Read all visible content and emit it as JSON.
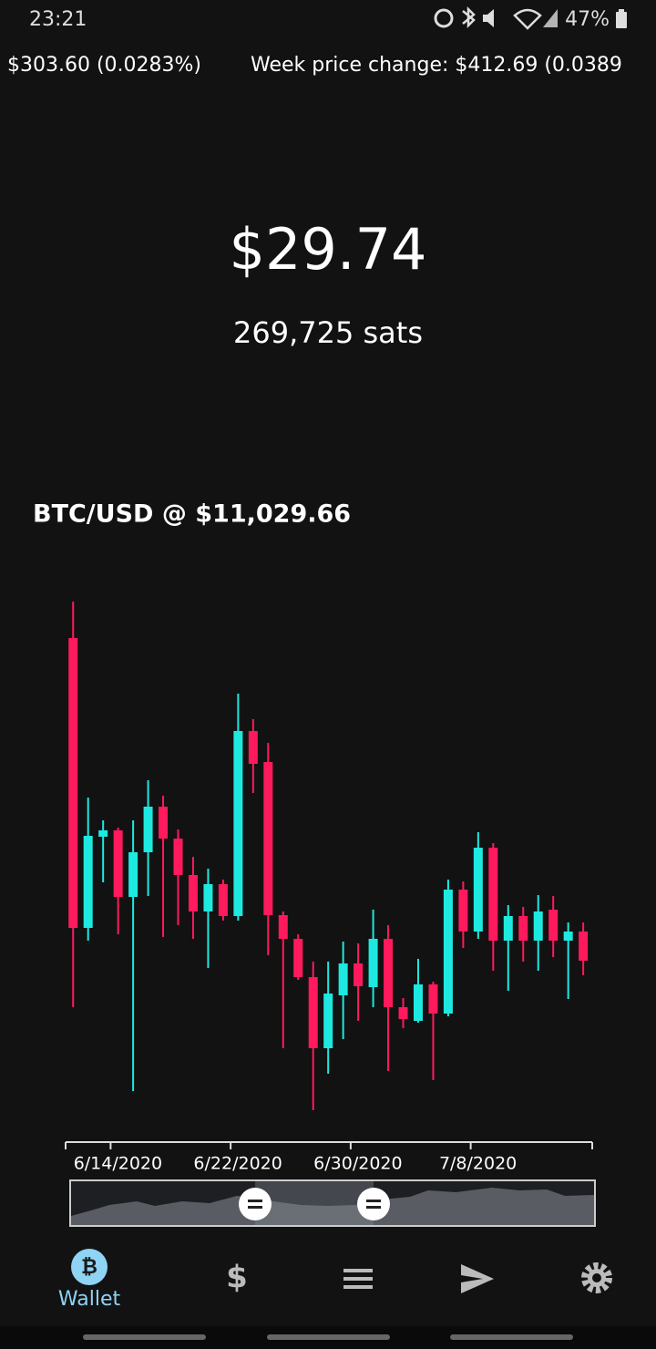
{
  "status_bar": {
    "time": "23:21",
    "battery": "47%"
  },
  "ticker": [
    "$303.60 (0.0283%)",
    "Week price change: $412.69 (0.0389"
  ],
  "balance": {
    "fiat": "$29.74",
    "sats": "269,725 sats"
  },
  "chart_data": {
    "type": "candlestick",
    "title": "BTC/USD @ $11,029.66",
    "up_color": "#1de9e0",
    "down_color": "#ff1a5e",
    "open": [
      9920,
      9284,
      9484,
      9498,
      9352,
      9450,
      9550,
      9480,
      9400,
      9320,
      9380,
      9310,
      9716,
      9648,
      9312,
      9260,
      9176,
      9020,
      9136,
      9206,
      9154,
      9260,
      9110,
      9080,
      9160,
      9096,
      9368,
      9276,
      9460,
      9256,
      9310,
      9256,
      9324,
      9256,
      9276
    ],
    "high": [
      10000,
      9570,
      9520,
      9504,
      9520,
      9608,
      9574,
      9500,
      9440,
      9414,
      9390,
      9798,
      9742,
      9690,
      9320,
      9270,
      9210,
      9210,
      9254,
      9250,
      9324,
      9290,
      9130,
      9216,
      9166,
      9390,
      9386,
      9494,
      9470,
      9334,
      9330,
      9356,
      9354,
      9296,
      9296
    ],
    "low": [
      9110,
      9256,
      9384,
      9270,
      8926,
      9354,
      9264,
      9290,
      9260,
      9196,
      9300,
      9300,
      9580,
      9224,
      9020,
      9170,
      8884,
      8964,
      9040,
      9080,
      9110,
      8970,
      9064,
      9076,
      8950,
      9090,
      9240,
      9260,
      9190,
      9146,
      9210,
      9190,
      9220,
      9128,
      9180
    ],
    "close": [
      9284,
      9486,
      9498,
      9352,
      9450,
      9550,
      9480,
      9400,
      9320,
      9380,
      9310,
      9716,
      9644,
      9312,
      9260,
      9176,
      9020,
      9140,
      9206,
      9156,
      9260,
      9110,
      9084,
      9160,
      9096,
      9368,
      9276,
      9460,
      9256,
      9310,
      9256,
      9320,
      9256,
      9276,
      9212
    ],
    "xlim": [
      -0.5,
      34.6
    ],
    "ylim": [
      8860,
      10020
    ],
    "xticks": [
      {
        "value": 2.5,
        "label": "6/14/2020"
      },
      {
        "value": 10.5,
        "label": "6/22/2020"
      },
      {
        "value": 18.5,
        "label": "6/30/2020"
      },
      {
        "value": 26.5,
        "label": "7/8/2020"
      }
    ]
  },
  "nav": {
    "items": [
      {
        "label": "Wallet",
        "icon": "₿"
      },
      {
        "icon": "$"
      }
    ]
  }
}
